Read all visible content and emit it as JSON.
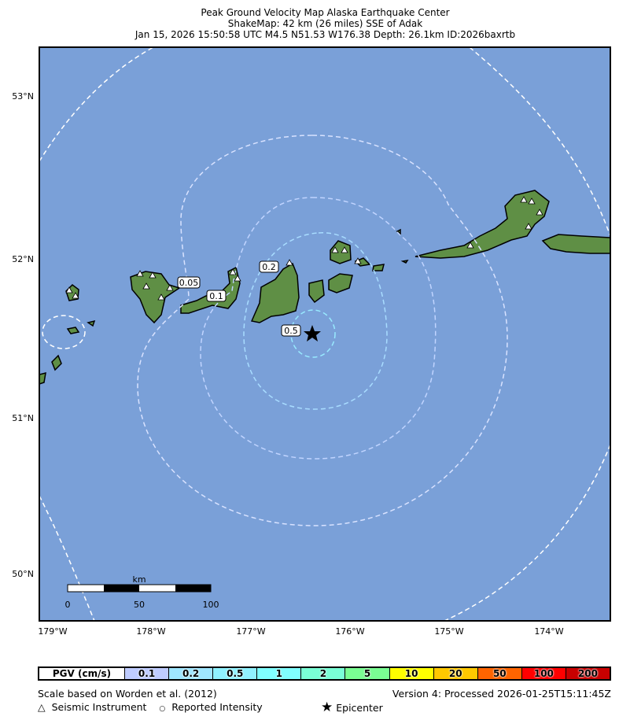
{
  "title": {
    "line1": "Peak Ground Velocity Map Alaska Earthquake Center",
    "line2": "ShakeMap: 42 km (26 miles) SSE of Adak",
    "line3": "Jan 15, 2026 15:50:58 UTC M4.5 N51.53 W176.38 Depth: 26.1km ID:2026baxrtb"
  },
  "map": {
    "water_color": "#7aa0d8",
    "lat_labels": [
      "53°N",
      "52°N",
      "51°N",
      "50°N"
    ],
    "lon_labels": [
      "179°W",
      "178°W",
      "177°W",
      "176°W",
      "175°W",
      "174°W"
    ],
    "contour_labels": [
      "0.05",
      "0.1",
      "0.2",
      "0.5"
    ],
    "scale_bar": {
      "unit": "km",
      "ticks": [
        "0",
        "50",
        "100"
      ]
    },
    "epicenter_icon": "star-icon",
    "station_icon": "triangle-icon"
  },
  "legend": {
    "header": "PGV (cm/s)",
    "bins": [
      {
        "label": "0.1",
        "color": "#bfccff"
      },
      {
        "label": "0.2",
        "color": "#a0e6ff"
      },
      {
        "label": "0.5",
        "color": "#90f2ff"
      },
      {
        "label": "1",
        "color": "#80ffff"
      },
      {
        "label": "2",
        "color": "#7affd6"
      },
      {
        "label": "5",
        "color": "#7aff93"
      },
      {
        "label": "10",
        "color": "#ffff00"
      },
      {
        "label": "20",
        "color": "#ffc800"
      },
      {
        "label": "50",
        "color": "#ff6400"
      },
      {
        "label": "100",
        "color": "#ff0000"
      },
      {
        "label": "200",
        "color": "#c80000"
      }
    ]
  },
  "footer": {
    "scale_note": "Scale based on Worden et al. (2012)",
    "version": "Version 4: Processed 2026-01-25T15:11:45Z",
    "seismic_instrument": "Seismic Instrument",
    "reported_intensity": "Reported Intensity",
    "epicenter": "Epicenter"
  }
}
